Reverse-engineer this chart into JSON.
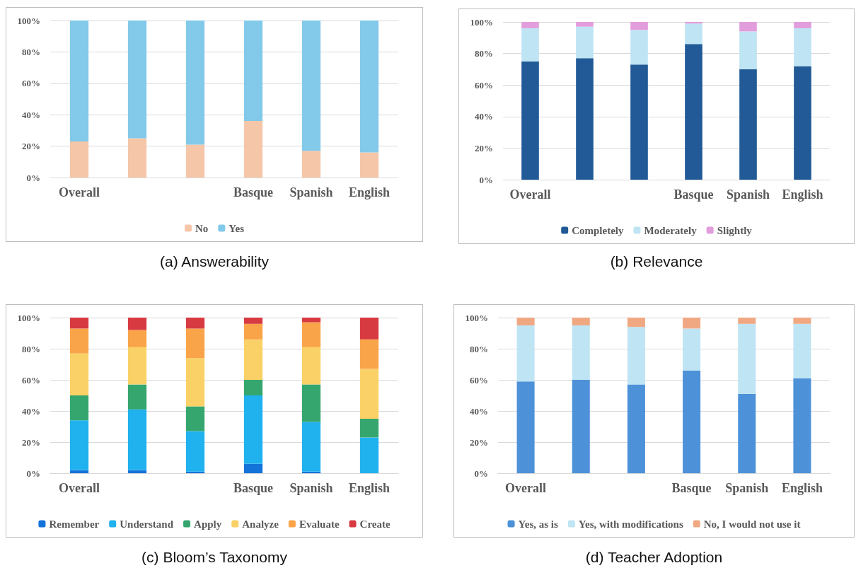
{
  "chart_data": [
    {
      "type": "bar",
      "title": "(a) Answerability",
      "stacked": true,
      "grid": "y",
      "legend": "bottom",
      "categories": [
        "Overall",
        null,
        null,
        "Basque",
        "Spanish",
        "English"
      ],
      "ylim": [
        0,
        100
      ],
      "yticks": [
        {
          "value": 0,
          "label": "0%"
        },
        {
          "value": 20,
          "label": "20%"
        },
        {
          "value": 40,
          "label": "40%"
        },
        {
          "value": 60,
          "label": "60%"
        },
        {
          "value": 80,
          "label": "80%"
        },
        {
          "value": 100,
          "label": "100%"
        }
      ],
      "series": [
        {
          "name": "No",
          "color": "#f5c6a8",
          "values": [
            23,
            25,
            21,
            36,
            17,
            16
          ]
        },
        {
          "name": "Yes",
          "color": "#82c9ea",
          "values": [
            77,
            75,
            79,
            64,
            83,
            84
          ]
        }
      ]
    },
    {
      "type": "bar",
      "title": "(b) Relevance",
      "stacked": true,
      "grid": "y",
      "legend": "bottom",
      "categories": [
        "Overall",
        null,
        null,
        "Basque",
        "Spanish",
        "English"
      ],
      "ylim": [
        0,
        100
      ],
      "yticks": [
        {
          "value": 0,
          "label": "0%"
        },
        {
          "value": 20,
          "label": "20%"
        },
        {
          "value": 40,
          "label": "40%"
        },
        {
          "value": 60,
          "label": "60%"
        },
        {
          "value": 80,
          "label": "80%"
        },
        {
          "value": 100,
          "label": "100%"
        }
      ],
      "series": [
        {
          "name": "Completely",
          "color": "#215a96",
          "values": [
            75,
            77,
            73,
            86,
            70,
            72
          ]
        },
        {
          "name": "Moderately",
          "color": "#bfe4f3",
          "values": [
            21,
            20,
            22,
            13,
            24,
            24
          ]
        },
        {
          "name": "Slightly",
          "color": "#e29ddc",
          "values": [
            4,
            3,
            5,
            1,
            6,
            4
          ]
        }
      ]
    },
    {
      "type": "bar",
      "title": "(c) Bloom’s Taxonomy",
      "stacked": true,
      "grid": "y",
      "legend": "bottom",
      "categories": [
        "Overall",
        null,
        null,
        "Basque",
        "Spanish",
        "English"
      ],
      "ylim": [
        0,
        100
      ],
      "yticks": [
        {
          "value": 0,
          "label": "0%"
        },
        {
          "value": 20,
          "label": "20%"
        },
        {
          "value": 40,
          "label": "40%"
        },
        {
          "value": 60,
          "label": "60%"
        },
        {
          "value": 80,
          "label": "80%"
        },
        {
          "value": 100,
          "label": "100%"
        }
      ],
      "series": [
        {
          "name": "Remember",
          "color": "#1473d9",
          "values": [
            2,
            2,
            1,
            6,
            1,
            0
          ]
        },
        {
          "name": "Understand",
          "color": "#20b1ef",
          "values": [
            32,
            39,
            26,
            44,
            32,
            23
          ]
        },
        {
          "name": "Apply",
          "color": "#35a66e",
          "values": [
            16,
            16,
            16,
            10,
            24,
            12
          ]
        },
        {
          "name": "Analyze",
          "color": "#fad166",
          "values": [
            27,
            24,
            31,
            26,
            24,
            32
          ]
        },
        {
          "name": "Evaluate",
          "color": "#f9a449",
          "values": [
            16,
            11,
            19,
            10,
            16,
            19
          ]
        },
        {
          "name": "Create",
          "color": "#d83a42",
          "values": [
            7,
            8,
            7,
            4,
            3,
            14
          ]
        }
      ]
    },
    {
      "type": "bar",
      "title": "(d) Teacher Adoption",
      "stacked": true,
      "grid": "y",
      "legend": "bottom",
      "categories": [
        "Overall",
        null,
        null,
        "Basque",
        "Spanish",
        "English"
      ],
      "ylim": [
        0,
        100
      ],
      "yticks": [
        {
          "value": 0,
          "label": "0%"
        },
        {
          "value": 20,
          "label": "20%"
        },
        {
          "value": 40,
          "label": "40%"
        },
        {
          "value": 60,
          "label": "60%"
        },
        {
          "value": 80,
          "label": "80%"
        },
        {
          "value": 100,
          "label": "100%"
        }
      ],
      "series": [
        {
          "name": "Yes, as is",
          "color": "#4d91d8",
          "values": [
            59,
            60,
            57,
            66,
            51,
            61
          ]
        },
        {
          "name": "Yes, with modifications",
          "color": "#bfe4f3",
          "values": [
            36,
            35,
            37,
            27,
            45,
            35
          ]
        },
        {
          "name": "No, I would not use it",
          "color": "#f0a882",
          "values": [
            5,
            5,
            6,
            7,
            4,
            4
          ]
        }
      ]
    }
  ]
}
